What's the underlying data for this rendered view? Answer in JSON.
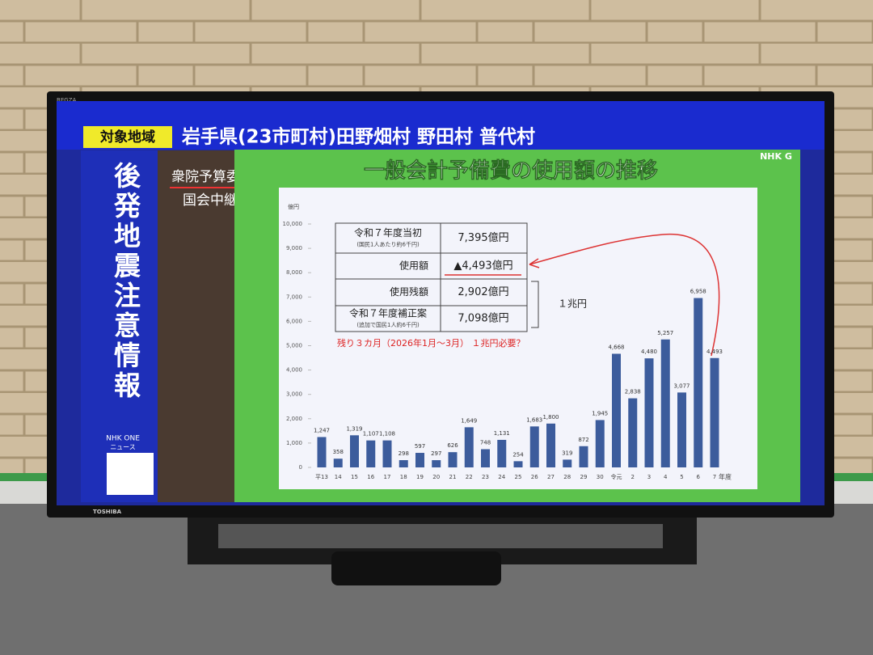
{
  "screen": {
    "brand": "REGZA",
    "maker": "TOSHIBA",
    "channel": "NHK G",
    "region_label": "対象地域",
    "region": "岩手県(23市町村)田野畑村 野田村 普代村",
    "alert": "後発地震注意情報",
    "app": "NHK ONE",
    "app_sub": "ニュース",
    "program": "衆院予算委",
    "program_sub": "国会中継"
  },
  "table": {
    "rows": [
      {
        "label": "令和７年度当初",
        "note": "(国民1人あたり約6千円)",
        "value": "7,395億円"
      },
      {
        "label": "使用額",
        "value": "▲4,493億円"
      },
      {
        "label": "使用残額",
        "value": "2,902億円"
      },
      {
        "label": "令和７年度補正案",
        "note": "(追加で国民1人約6千円)",
        "value": "7,098億円"
      }
    ],
    "bracket": "１兆円",
    "note": "残り３カ月（2026年1月～3月） １兆円必要？"
  },
  "chart_data": {
    "type": "bar",
    "title": "一般会計予備費の使用額の推移",
    "y_label": "億円",
    "x_label": "年度",
    "categories": [
      "平13",
      "14",
      "15",
      "16",
      "17",
      "18",
      "19",
      "20",
      "21",
      "22",
      "23",
      "24",
      "25",
      "26",
      "27",
      "28",
      "29",
      "30",
      "令元",
      "2",
      "3",
      "4",
      "5",
      "6",
      "7"
    ],
    "values": [
      1247,
      358,
      1319,
      1107,
      1108,
      298,
      597,
      297,
      626,
      1649,
      748,
      1131,
      254,
      1683,
      1800,
      319,
      872,
      1945,
      4668,
      2838,
      4480,
      5257,
      3077,
      6958,
      4493
    ],
    "value_labels": [
      "1,247",
      "358",
      "1,319",
      "1,107",
      "1,108",
      "298",
      "597",
      "297",
      "626",
      "1,649",
      "748",
      "1,131",
      "254",
      "1,683",
      "1,800",
      "319",
      "872",
      "1,945",
      "4,668",
      "2,838",
      "4,480",
      "5,257",
      "3,077",
      "6,958",
      "4,493"
    ],
    "color": "#3c5c9c",
    "ylim": [
      0,
      10000
    ],
    "yticks": [
      0,
      {
        "value": 1000,
        "label": "1,000"
      },
      {
        "value": 2000,
        "label": "2,000"
      },
      {
        "value": 3000,
        "label": "3,000"
      },
      {
        "value": 4000,
        "label": "4,000"
      },
      {
        "value": 5000,
        "label": "5,000"
      },
      {
        "value": 6000,
        "label": "6,000"
      },
      {
        "value": 7000,
        "label": "7,000"
      },
      {
        "value": 8000,
        "label": "8,000"
      },
      {
        "value": 9000,
        "label": "9,000"
      },
      {
        "value": 10000,
        "label": "10,000"
      }
    ],
    "grid": false
  }
}
